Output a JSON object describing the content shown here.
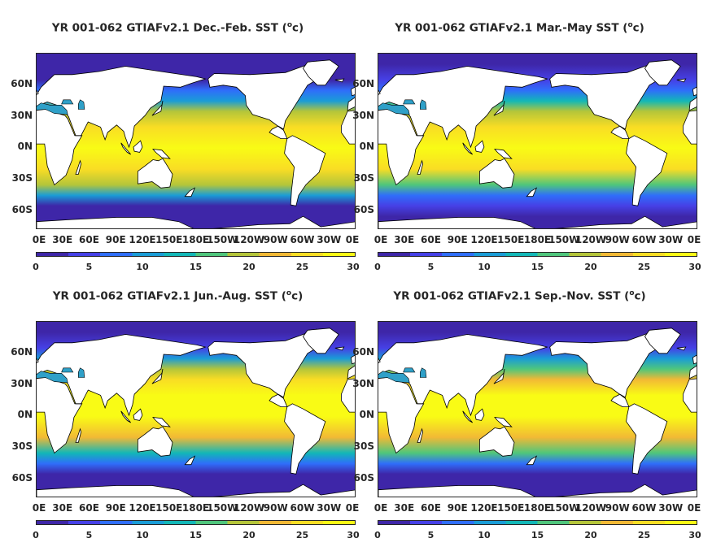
{
  "panels": [
    {
      "title": "YR 001-062 GTIAFv2.1 Dec.-Feb. SST (",
      "unit": "o",
      "unit_tail": "c)",
      "season": "DJF"
    },
    {
      "title": "YR 001-062 GTIAFv2.1 Mar.-May SST (",
      "unit": "o",
      "unit_tail": "c)",
      "season": "MAM"
    },
    {
      "title": "YR 001-062 GTIAFv2.1 Jun.-Aug. SST (",
      "unit": "o",
      "unit_tail": "c)",
      "season": "JJA"
    },
    {
      "title": "YR 001-062 GTIAFv2.1 Sep.-Nov. SST (",
      "unit": "o",
      "unit_tail": "c)",
      "season": "SON"
    }
  ],
  "latitude_labels": [
    "60N",
    "30N",
    "0N",
    "30S",
    "60S"
  ],
  "longitude_labels": [
    "0E",
    "30E",
    "60E",
    "90E",
    "120E",
    "150E",
    "180E",
    "150W",
    "120W",
    "90W",
    "60W",
    "30W",
    "0E"
  ],
  "colorbar": {
    "ticks": [
      "0",
      "5",
      "10",
      "15",
      "20",
      "25",
      "30"
    ],
    "min": 0,
    "max": 30,
    "colors": [
      "#3e26a8",
      "#4640e6",
      "#2f6efa",
      "#1a9cd6",
      "#12b7b7",
      "#4fc67c",
      "#b4c53a",
      "#f2b935",
      "#f9dd24",
      "#f9fb15"
    ]
  },
  "map_extent": {
    "lon_min": 0,
    "lon_max": 360,
    "lat_min": -78,
    "lat_max": 90
  },
  "chart_data": {
    "type": "heatmap",
    "variable": "SST",
    "units": "oC",
    "color_range": [
      0,
      30
    ],
    "zonal_profile_lat": [
      -78,
      -65,
      -55,
      -45,
      -35,
      -20,
      0,
      20,
      35,
      45,
      55,
      65,
      80,
      90
    ],
    "zonal_profile_sst": {
      "DJF": [
        -1,
        -1,
        2,
        9,
        18,
        24,
        28,
        25,
        18,
        10,
        6,
        2,
        -1,
        -1
      ],
      "MAM": [
        -1,
        0,
        3,
        8,
        16,
        24,
        29,
        26,
        20,
        12,
        7,
        3,
        -1,
        -1
      ],
      "JJA": [
        -1,
        -1,
        1,
        7,
        14,
        22,
        28,
        28,
        25,
        18,
        11,
        5,
        0,
        -1
      ],
      "SON": [
        -1,
        -1,
        2,
        7,
        15,
        23,
        28,
        27,
        23,
        15,
        9,
        3,
        -1,
        -1
      ]
    }
  }
}
